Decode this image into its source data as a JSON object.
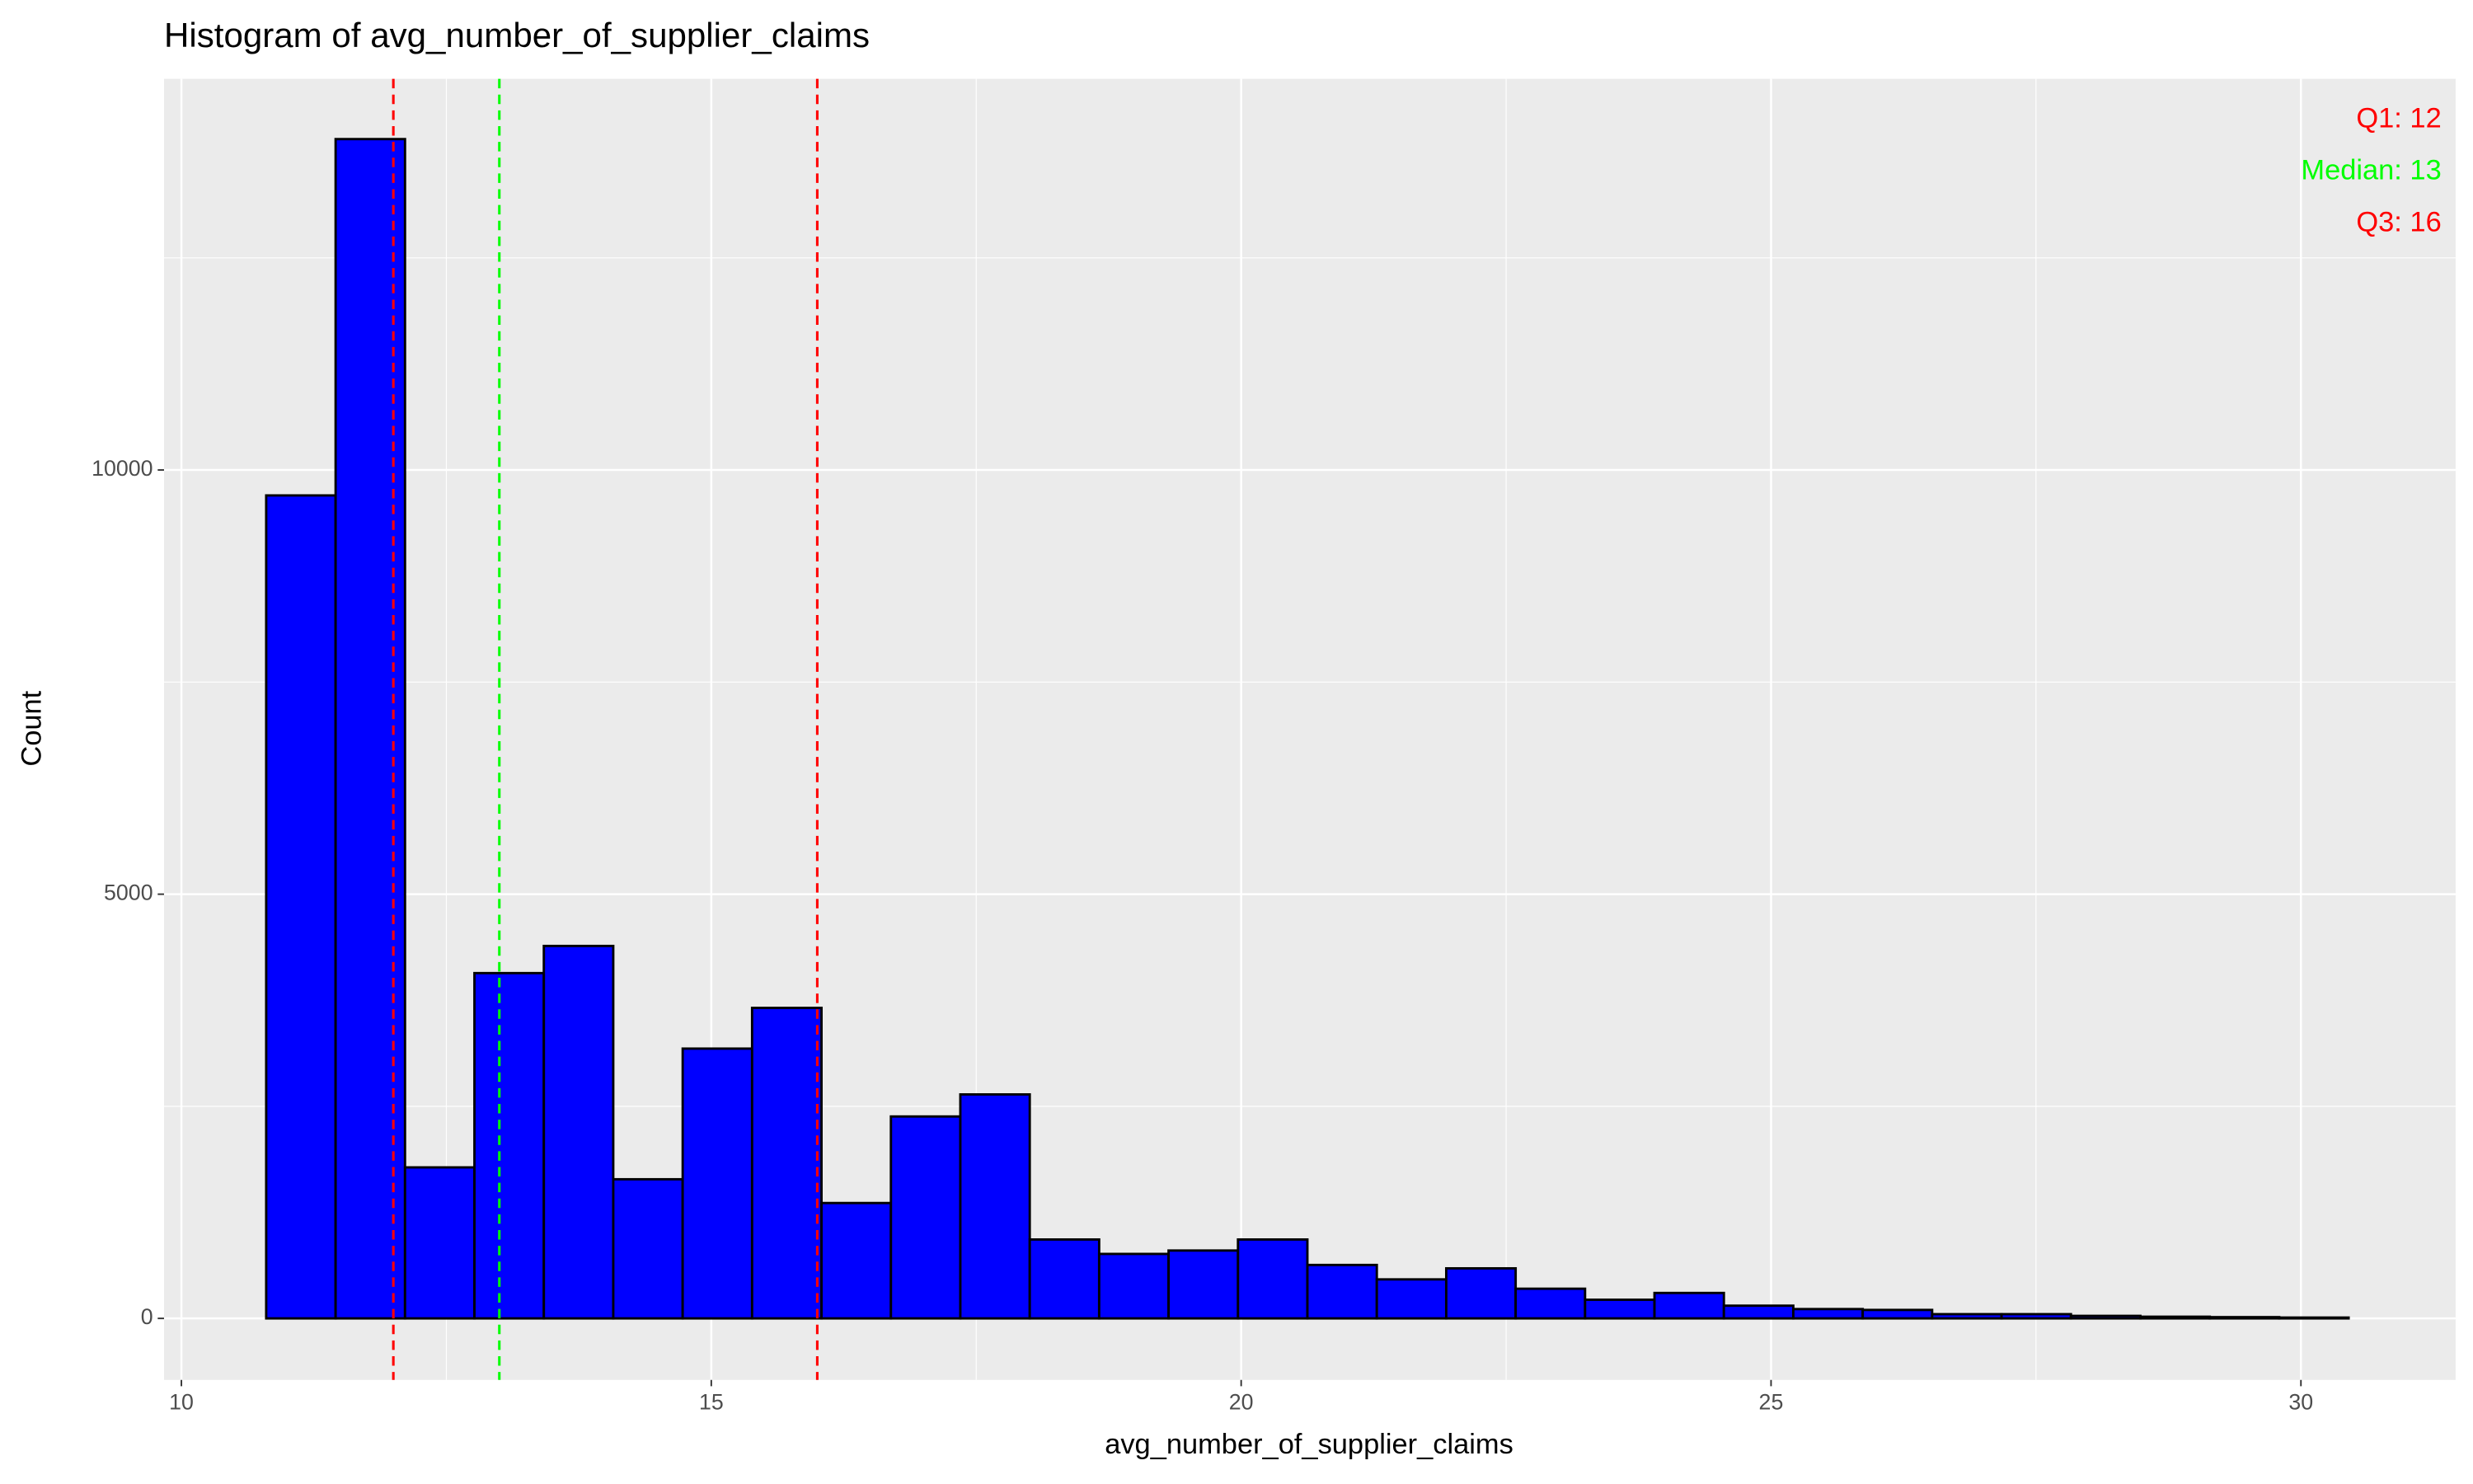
{
  "chart_data": {
    "type": "histogram",
    "title": "Histogram of avg_number_of_supplier_claims",
    "x_label": "avg_number_of_supplier_claims",
    "y_label": "Count",
    "bins": [
      10.8,
      11.455,
      12.11,
      12.765,
      13.42,
      14.075,
      14.73,
      15.385,
      16.04,
      16.695,
      17.35,
      18.005,
      18.66,
      19.315,
      19.97,
      20.625,
      21.28,
      21.935,
      22.59,
      23.245,
      23.9,
      24.555,
      25.21,
      25.865,
      26.52,
      27.175,
      27.83,
      28.485,
      29.14,
      29.795,
      30.45
    ],
    "counts": [
      9700,
      13900,
      1780,
      4070,
      4390,
      1640,
      3180,
      3660,
      1360,
      2380,
      2640,
      930,
      760,
      800,
      930,
      630,
      460,
      590,
      350,
      220,
      300,
      150,
      110,
      100,
      50,
      50,
      30,
      20,
      15,
      10
    ],
    "color": "#0000ff",
    "edge_color": "#000000",
    "xlim": [
      9.836,
      31.46
    ],
    "ylim": [
      -725,
      14610
    ],
    "xticks": [
      10,
      15,
      20,
      25,
      30
    ],
    "yticks": [
      0,
      5000,
      10000
    ],
    "grid": true,
    "reference_lines": [
      {
        "label": "Q1: 12",
        "value": 12,
        "color": "#ff0000"
      },
      {
        "label": "Median: 13",
        "value": 13,
        "color": "#00ff00"
      },
      {
        "label": "Q3: 16",
        "value": 16,
        "color": "#ff0000"
      }
    ]
  }
}
